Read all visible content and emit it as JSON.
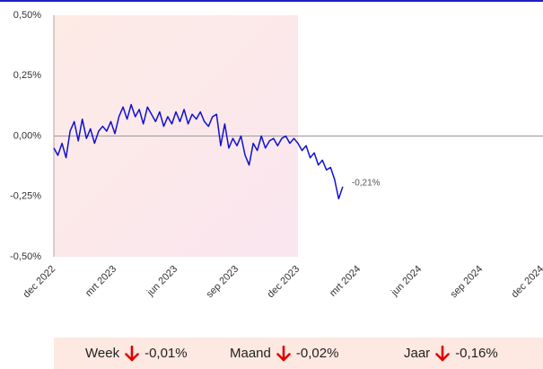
{
  "chart_data": {
    "type": "line",
    "xlim": [
      0,
      24
    ],
    "xticks": [
      {
        "value": 0,
        "label": "dec 2022"
      },
      {
        "value": 3,
        "label": "mrt 2023"
      },
      {
        "value": 6,
        "label": "jun 2023"
      },
      {
        "value": 9,
        "label": "sep 2023"
      },
      {
        "value": 12,
        "label": "dec 2023"
      },
      {
        "value": 15,
        "label": "mrt 2024"
      },
      {
        "value": 18,
        "label": "jun 2024"
      },
      {
        "value": 21,
        "label": "sep 2024"
      },
      {
        "value": 24,
        "label": "dec 2024"
      }
    ],
    "ylim": [
      -0.5,
      0.5
    ],
    "yticks": [
      {
        "value": -0.5,
        "label": "-0,50%"
      },
      {
        "value": -0.25,
        "label": "-0,25%"
      },
      {
        "value": 0,
        "label": "0,00%"
      },
      {
        "value": 0.25,
        "label": "0,25%"
      },
      {
        "value": 0.5,
        "label": "0,50%"
      }
    ],
    "shade": [
      0,
      12
    ],
    "series": [
      {
        "color": "#1010d0",
        "x": [
          0,
          0.2,
          0.4,
          0.6,
          0.8,
          1.0,
          1.2,
          1.4,
          1.6,
          1.8,
          2.0,
          2.2,
          2.4,
          2.6,
          2.8,
          3.0,
          3.2,
          3.4,
          3.6,
          3.8,
          4.0,
          4.2,
          4.4,
          4.6,
          4.8,
          5.0,
          5.2,
          5.4,
          5.6,
          5.8,
          6.0,
          6.2,
          6.4,
          6.6,
          6.8,
          7.0,
          7.2,
          7.4,
          7.6,
          7.8,
          8.0,
          8.2,
          8.4,
          8.6,
          8.8,
          9.0,
          9.2,
          9.4,
          9.6,
          9.8,
          10.0,
          10.2,
          10.4,
          10.6,
          10.8,
          11.0,
          11.2,
          11.4,
          11.6,
          11.8,
          12.0,
          12.2,
          12.4,
          12.6,
          12.8,
          13.0,
          13.2,
          13.4,
          13.6,
          13.8,
          14.0,
          14.2
        ],
        "values": [
          -0.05,
          -0.08,
          -0.03,
          -0.09,
          0.02,
          0.06,
          -0.02,
          0.07,
          -0.01,
          0.03,
          -0.03,
          0.02,
          0.04,
          0.02,
          0.06,
          0.01,
          0.08,
          0.12,
          0.07,
          0.13,
          0.08,
          0.11,
          0.05,
          0.12,
          0.09,
          0.06,
          0.1,
          0.04,
          0.08,
          0.05,
          0.1,
          0.06,
          0.11,
          0.05,
          0.09,
          0.07,
          0.1,
          0.06,
          0.04,
          0.08,
          0.09,
          -0.04,
          0.05,
          -0.05,
          -0.01,
          -0.04,
          0.0,
          -0.08,
          -0.12,
          -0.03,
          -0.06,
          0.0,
          -0.05,
          -0.02,
          -0.01,
          -0.04,
          -0.01,
          0.0,
          -0.03,
          -0.01,
          -0.03,
          -0.06,
          -0.04,
          -0.09,
          -0.07,
          -0.12,
          -0.1,
          -0.14,
          -0.13,
          -0.18,
          -0.26,
          -0.21
        ]
      }
    ],
    "annotation": "-0,21%"
  },
  "summary": [
    {
      "label": "Week",
      "value": "-0,01%"
    },
    {
      "label": "Maand",
      "value": "-0,02%"
    },
    {
      "label": "Jaar",
      "value": "-0,16%"
    }
  ]
}
